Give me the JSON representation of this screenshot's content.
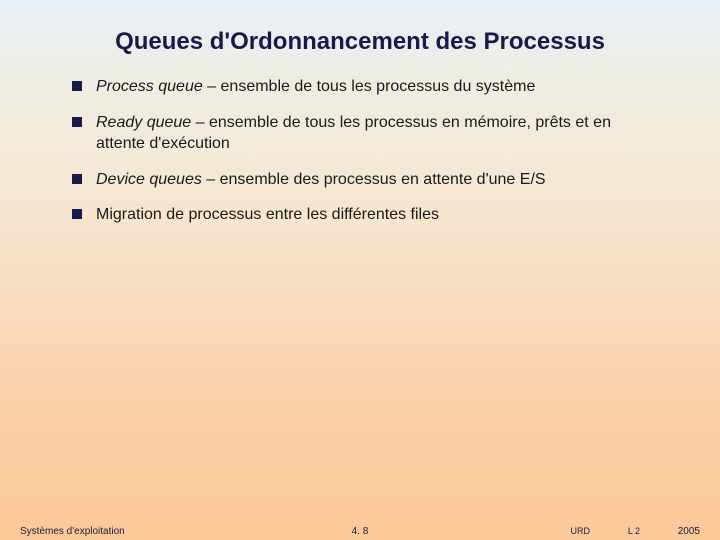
{
  "title": "Queues d'Ordonnancement des Processus",
  "bullets": [
    {
      "term": "Process queue",
      "rest": " – ensemble de tous les processus du système"
    },
    {
      "term": "Ready queue",
      "rest": " – ensemble de tous les processus en mémoire, prêts et en attente d'exécution"
    },
    {
      "term": "Device queues",
      "rest": " – ensemble des processus en attente d'une E/S"
    },
    {
      "term": "",
      "rest": "Migration de processus entre les différentes files"
    }
  ],
  "footer": {
    "left": "Systèmes d'exploitation",
    "center": "4. 8",
    "urd": "URD",
    "l2": "L 2",
    "year": "2005"
  },
  "colors": {
    "title_color": "#1a1a4a",
    "bullet_color": "#1a1a4a",
    "text_color": "#1a1a1a"
  }
}
